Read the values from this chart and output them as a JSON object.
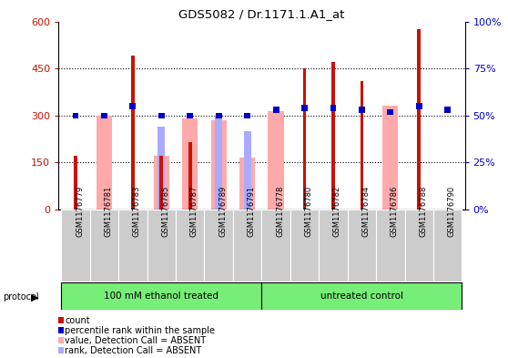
{
  "title": "GDS5082 / Dr.1171.1.A1_at",
  "samples": [
    "GSM1176779",
    "GSM1176781",
    "GSM1176783",
    "GSM1176785",
    "GSM1176787",
    "GSM1176789",
    "GSM1176791",
    "GSM1176778",
    "GSM1176780",
    "GSM1176782",
    "GSM1176784",
    "GSM1176786",
    "GSM1176788",
    "GSM1176790"
  ],
  "group1_label": "100 mM ethanol treated",
  "group2_label": "untreated control",
  "group1_count": 7,
  "group2_count": 7,
  "count_values": [
    170,
    0,
    490,
    170,
    215,
    0,
    0,
    0,
    450,
    470,
    410,
    0,
    575,
    0
  ],
  "percentile_values": [
    50,
    50,
    55,
    50,
    50,
    50,
    50,
    53,
    54,
    54,
    53,
    52,
    55,
    53
  ],
  "absent_value_values": [
    0,
    300,
    0,
    170,
    290,
    285,
    165,
    315,
    0,
    0,
    0,
    330,
    0,
    0
  ],
  "absent_rank_values": [
    0,
    0,
    0,
    265,
    0,
    300,
    250,
    0,
    0,
    0,
    0,
    0,
    0,
    0
  ],
  "ylim_left": [
    0,
    600
  ],
  "ylim_right": [
    0,
    100
  ],
  "yticks_left": [
    0,
    150,
    300,
    450,
    600
  ],
  "yticks_right": [
    0,
    25,
    50,
    75,
    100
  ],
  "ytick_labels_right": [
    "0%",
    "25%",
    "50%",
    "75%",
    "100%"
  ],
  "count_color": "#cc1100",
  "percentile_color": "#0000cc",
  "absent_value_color": "#ffaaaa",
  "absent_rank_color": "#aaaaff",
  "bg_color": "#ffffff",
  "group_bg_color": "#77ee77",
  "tick_bg_color": "#cccccc",
  "dotted_lines": [
    150,
    300,
    450
  ],
  "wide_bar_width": 0.55,
  "medium_bar_width": 0.25,
  "narrow_bar_width": 0.12,
  "pct_bar_height": 18,
  "pct_bar_width": 0.22
}
